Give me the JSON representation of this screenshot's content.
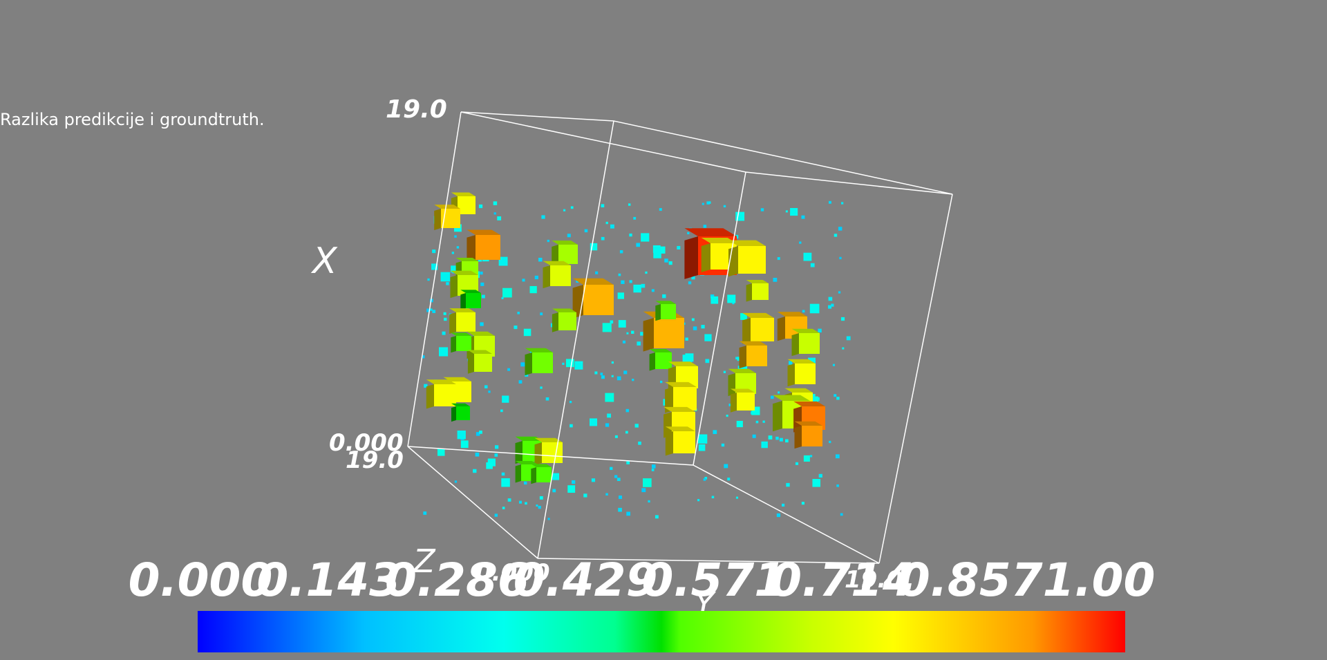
{
  "caption": "Razlika predikcije i groundtruth.",
  "chart_data": {
    "type": "3d-voxel",
    "title": "",
    "axes": {
      "x": {
        "label": "X",
        "range": [
          0,
          19
        ],
        "tick_labels": [
          "0.000",
          "19.0"
        ]
      },
      "y": {
        "label": "Y",
        "range": [
          0,
          19
        ],
        "tick_labels": [
          "0.000",
          "19.0"
        ]
      },
      "z": {
        "label": "Z",
        "range": [
          0,
          19
        ],
        "tick_labels": [
          "19.0"
        ]
      }
    },
    "colorbar": {
      "range": [
        0,
        1
      ],
      "colormap": "jet",
      "ticks": [
        "0.000",
        "0.143",
        "0.286",
        "0.429",
        "0.571",
        "0.714",
        "0.857",
        "1.00"
      ],
      "tick_values": [
        0,
        0.143,
        0.286,
        0.429,
        0.571,
        0.714,
        0.857,
        1.0
      ]
    },
    "grid": false,
    "legend": "colorbar-bottom",
    "colors": {
      "background": "#808080",
      "box_lines": "#ffffff",
      "low": "#0000ff",
      "mid": "#00ff00",
      "high": "#ff0000"
    }
  }
}
